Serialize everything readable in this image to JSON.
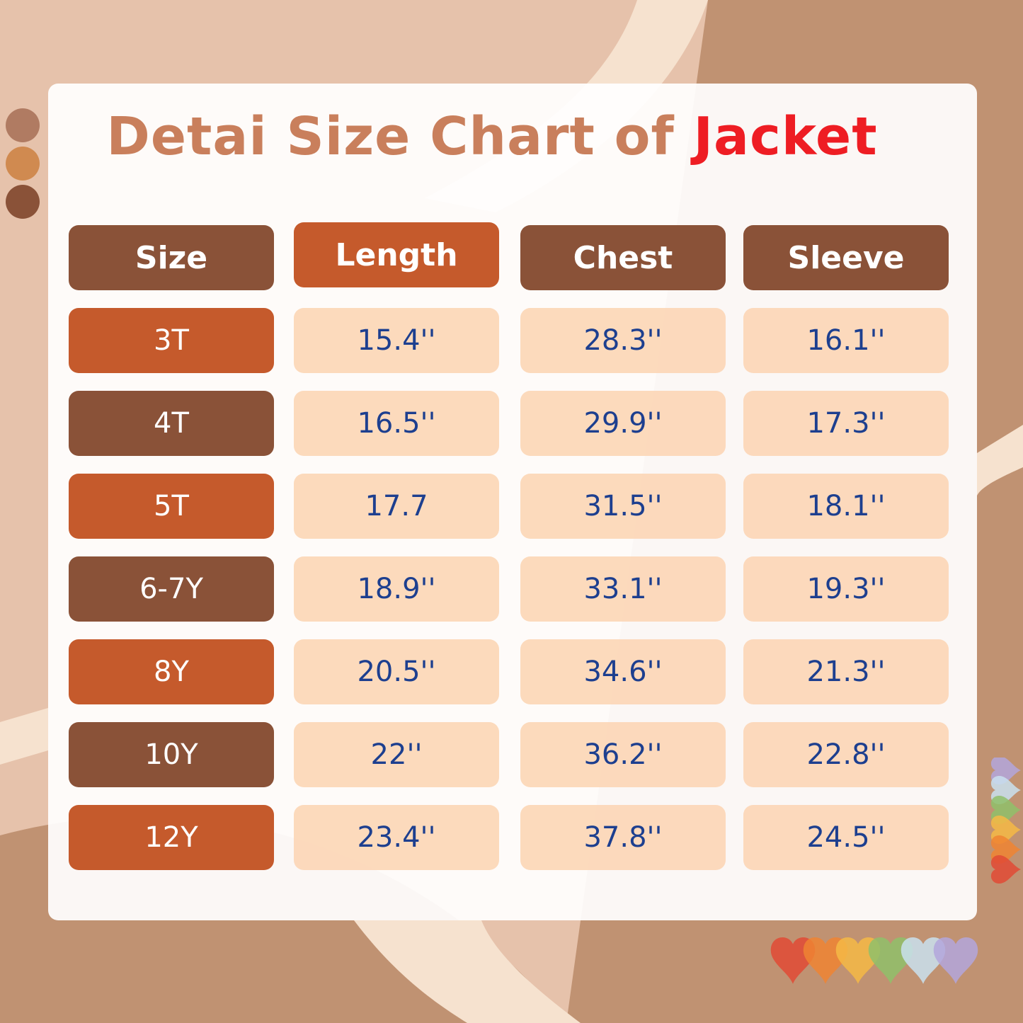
{
  "title": {
    "main": "Detai Size Chart of",
    "accent": "Jacket"
  },
  "colors": {
    "dark": "#8a5238",
    "orange": "#c55a2c",
    "value_bg": "#fcd4b2",
    "value_text": "#1d3f8f",
    "title": "#c97f5c",
    "accent": "#ee1d23"
  },
  "table": {
    "headers": [
      "Size",
      "Length",
      "Chest",
      "Sleeve"
    ],
    "rows": [
      [
        "3T",
        "15.4''",
        "28.3''",
        "16.1''"
      ],
      [
        "4T",
        "16.5''",
        "29.9''",
        "17.3''"
      ],
      [
        "5T",
        "17.7",
        "31.5''",
        "18.1''"
      ],
      [
        "6-7Y",
        "18.9''",
        "33.1''",
        "19.3''"
      ],
      [
        "8Y",
        "20.5''",
        "34.6''",
        "21.3''"
      ],
      [
        "10Y",
        "22''",
        "36.2''",
        "22.8''"
      ],
      [
        "12Y",
        "23.4''",
        "37.8''",
        "24.5''"
      ]
    ]
  },
  "decor": {
    "dots": [
      "#b07b62",
      "#d08a50",
      "#8a5238"
    ],
    "hearts": [
      "#e04a35",
      "#ee8433",
      "#f5b845",
      "#8fbf6a",
      "#c9e0ee",
      "#b3a6dc"
    ]
  }
}
